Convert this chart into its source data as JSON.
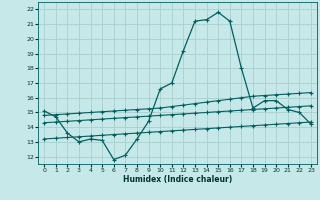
{
  "xlabel": "Humidex (Indice chaleur)",
  "ylabel": "",
  "background_color": "#c6e8e8",
  "grid_color": "#a8cece",
  "line_color": "#006060",
  "xlim": [
    -0.5,
    23.5
  ],
  "ylim": [
    11.5,
    22.5
  ],
  "x": [
    0,
    1,
    2,
    3,
    4,
    5,
    6,
    7,
    8,
    9,
    10,
    11,
    12,
    13,
    14,
    15,
    16,
    17,
    18,
    19,
    20,
    21,
    22,
    23
  ],
  "humidex": [
    15.1,
    14.7,
    13.6,
    13.0,
    13.2,
    13.1,
    11.8,
    12.1,
    13.2,
    14.4,
    16.6,
    17.0,
    19.2,
    21.2,
    21.3,
    21.8,
    21.2,
    18.0,
    15.3,
    15.8,
    15.8,
    15.2,
    15.0,
    14.2
  ],
  "line1": [
    14.8,
    14.85,
    14.9,
    14.95,
    15.0,
    15.05,
    15.1,
    15.15,
    15.2,
    15.25,
    15.3,
    15.4,
    15.5,
    15.6,
    15.7,
    15.8,
    15.9,
    16.0,
    16.1,
    16.15,
    16.2,
    16.25,
    16.3,
    16.35
  ],
  "line2": [
    14.3,
    14.35,
    14.4,
    14.45,
    14.5,
    14.55,
    14.6,
    14.65,
    14.7,
    14.75,
    14.8,
    14.85,
    14.9,
    14.95,
    15.0,
    15.05,
    15.1,
    15.15,
    15.2,
    15.25,
    15.3,
    15.35,
    15.4,
    15.45
  ],
  "line3": [
    13.2,
    13.25,
    13.3,
    13.35,
    13.4,
    13.45,
    13.5,
    13.55,
    13.6,
    13.65,
    13.7,
    13.75,
    13.8,
    13.85,
    13.9,
    13.95,
    14.0,
    14.05,
    14.1,
    14.15,
    14.2,
    14.25,
    14.3,
    14.35
  ],
  "yticks": [
    12,
    13,
    14,
    15,
    16,
    17,
    18,
    19,
    20,
    21,
    22
  ],
  "xticks": [
    0,
    1,
    2,
    3,
    4,
    5,
    6,
    7,
    8,
    9,
    10,
    11,
    12,
    13,
    14,
    15,
    16,
    17,
    18,
    19,
    20,
    21,
    22,
    23
  ],
  "tick_fontsize": 4.5,
  "xlabel_fontsize": 5.5
}
